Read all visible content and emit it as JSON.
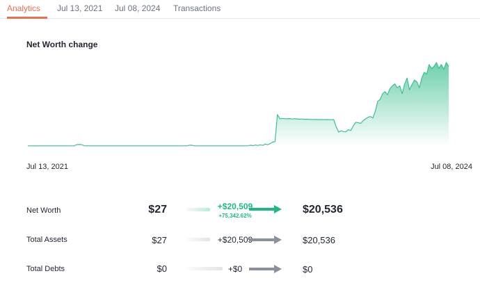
{
  "tabs": [
    {
      "label": "Analytics",
      "active": true
    },
    {
      "label": "Jul 13, 2021",
      "active": false
    },
    {
      "label": "Jul 08, 2024",
      "active": false
    },
    {
      "label": "Transactions",
      "active": false
    }
  ],
  "section_title": "Net Worth change",
  "date_range": {
    "start": "Jul 13, 2021",
    "end": "Jul 08, 2024"
  },
  "colors": {
    "accent": "#e8704e",
    "positive": "#1fb884",
    "neutral": "#8a909e",
    "line": "#3cc08f"
  },
  "rows": [
    {
      "label": "Net Worth",
      "start": "$27",
      "change": "+$20,509",
      "pct": "+75,342.62%",
      "end": "$20,536",
      "highlight": true
    },
    {
      "label": "Total Assets",
      "start": "$27",
      "change": "+$20,509",
      "end": "$20,536"
    },
    {
      "label": "Total Debts",
      "start": "$0",
      "change": "+$0",
      "end": "$0"
    }
  ],
  "chart_data": {
    "type": "area",
    "series": [
      {
        "values": [
          27,
          28,
          27,
          26,
          27,
          28,
          29,
          28,
          27,
          28,
          27,
          28,
          27,
          28,
          27,
          28,
          29,
          28,
          27,
          28,
          350,
          380,
          360,
          50,
          40,
          30,
          28,
          29,
          30,
          28,
          27,
          29,
          28,
          27,
          28,
          30,
          29,
          27,
          28,
          29,
          28,
          30,
          29,
          28,
          27,
          28,
          29,
          28,
          27,
          28,
          29,
          30,
          28,
          27,
          28,
          29,
          30,
          29,
          28,
          27,
          28,
          29,
          28,
          27,
          28,
          30,
          200,
          210,
          40,
          28,
          27,
          29,
          30,
          28,
          27,
          28,
          29,
          30,
          29,
          28,
          29,
          30,
          28,
          29,
          30,
          31,
          29,
          30,
          32,
          31,
          60,
          200,
          70,
          250,
          120,
          300,
          140,
          500,
          320,
          600,
          1000,
          1100,
          8100,
          7000,
          7100,
          7050,
          7000,
          7060,
          6950,
          7020,
          6980,
          6900,
          6950,
          6880,
          6900,
          6850,
          6850,
          6800,
          6820,
          6790,
          6800,
          6780,
          6800,
          6790,
          6760,
          6800,
          5000,
          3600,
          3900,
          3700,
          3650,
          4200,
          4000,
          5200,
          6100,
          6000,
          5800,
          6500,
          7000,
          7400,
          7600,
          7200,
          9000,
          11500,
          12000,
          13500,
          14000,
          13200,
          14800,
          15500,
          16000,
          15000,
          15500,
          13500,
          16000,
          17500,
          14500,
          15800,
          17000,
          16500,
          15000,
          17500,
          19000,
          18500,
          21000,
          20000,
          20500,
          21500,
          20000,
          21000,
          19800,
          21500,
          20536
        ]
      }
    ]
  }
}
